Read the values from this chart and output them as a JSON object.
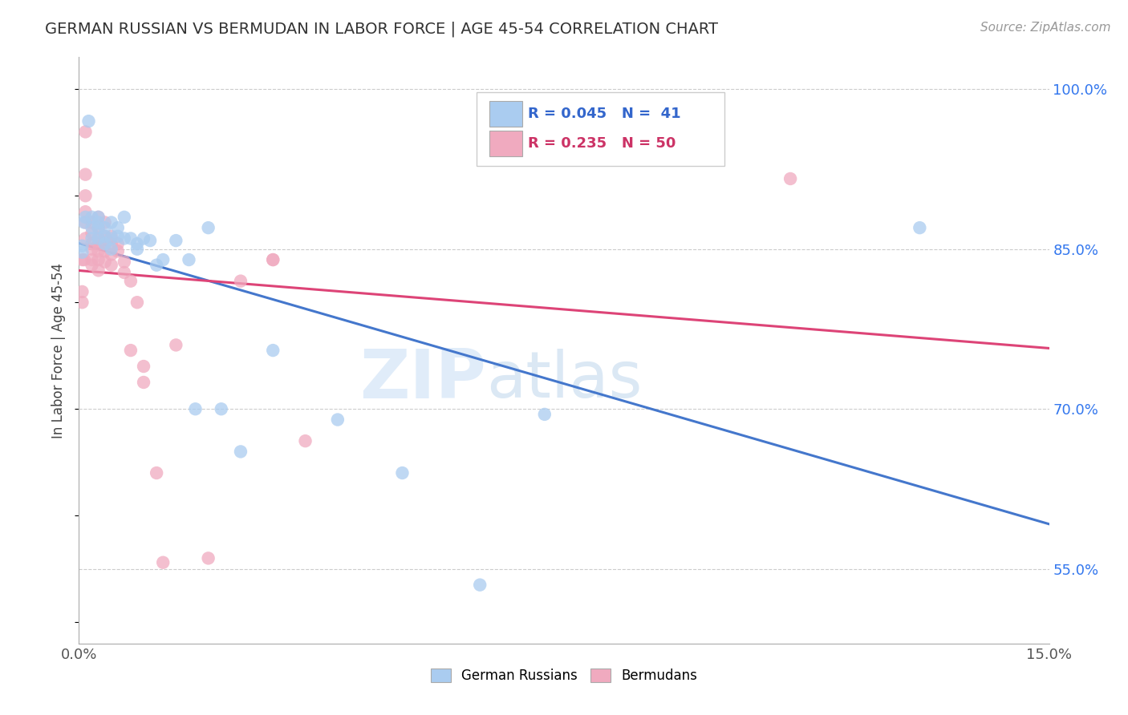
{
  "title": "GERMAN RUSSIAN VS BERMUDAN IN LABOR FORCE | AGE 45-54 CORRELATION CHART",
  "source": "Source: ZipAtlas.com",
  "ylabel": "In Labor Force | Age 45-54",
  "xlim": [
    0.0,
    0.15
  ],
  "ylim": [
    0.48,
    1.03
  ],
  "yticks_right": [
    1.0,
    0.85,
    0.7,
    0.55
  ],
  "yticklabels_right": [
    "100.0%",
    "85.0%",
    "70.0%",
    "55.0%"
  ],
  "blue_color": "#aaccf0",
  "pink_color": "#f0aabf",
  "blue_line_color": "#4477cc",
  "pink_line_color": "#dd4477",
  "watermark_zip": "ZIP",
  "watermark_atlas": "atlas",
  "german_russian_x": [
    0.0008,
    0.0015,
    0.001,
    0.002,
    0.002,
    0.002,
    0.003,
    0.003,
    0.003,
    0.003,
    0.004,
    0.004,
    0.004,
    0.005,
    0.005,
    0.005,
    0.006,
    0.006,
    0.007,
    0.007,
    0.008,
    0.009,
    0.009,
    0.01,
    0.011,
    0.012,
    0.013,
    0.015,
    0.017,
    0.018,
    0.02,
    0.022,
    0.025,
    0.03,
    0.04,
    0.05,
    0.062,
    0.072,
    0.13,
    0.0005,
    0.0005
  ],
  "german_russian_y": [
    0.875,
    0.97,
    0.88,
    0.88,
    0.87,
    0.86,
    0.88,
    0.875,
    0.87,
    0.86,
    0.87,
    0.862,
    0.855,
    0.875,
    0.86,
    0.85,
    0.87,
    0.862,
    0.88,
    0.86,
    0.86,
    0.855,
    0.85,
    0.86,
    0.858,
    0.835,
    0.84,
    0.858,
    0.84,
    0.7,
    0.87,
    0.7,
    0.66,
    0.755,
    0.69,
    0.64,
    0.535,
    0.695,
    0.87,
    0.853,
    0.847
  ],
  "bermudan_x": [
    0.0005,
    0.0008,
    0.001,
    0.001,
    0.001,
    0.001,
    0.001,
    0.001,
    0.002,
    0.002,
    0.002,
    0.002,
    0.002,
    0.002,
    0.003,
    0.003,
    0.003,
    0.003,
    0.003,
    0.003,
    0.003,
    0.004,
    0.004,
    0.004,
    0.004,
    0.004,
    0.005,
    0.005,
    0.005,
    0.005,
    0.006,
    0.006,
    0.007,
    0.007,
    0.008,
    0.008,
    0.009,
    0.01,
    0.01,
    0.012,
    0.013,
    0.015,
    0.02,
    0.025,
    0.03,
    0.03,
    0.035,
    0.11,
    0.0005,
    0.0005
  ],
  "bermudan_y": [
    0.84,
    0.84,
    0.96,
    0.92,
    0.9,
    0.885,
    0.875,
    0.86,
    0.875,
    0.865,
    0.855,
    0.85,
    0.84,
    0.835,
    0.88,
    0.87,
    0.86,
    0.855,
    0.848,
    0.84,
    0.83,
    0.875,
    0.862,
    0.855,
    0.848,
    0.838,
    0.862,
    0.855,
    0.845,
    0.835,
    0.855,
    0.848,
    0.838,
    0.828,
    0.82,
    0.755,
    0.8,
    0.74,
    0.725,
    0.64,
    0.556,
    0.76,
    0.56,
    0.82,
    0.84,
    0.84,
    0.67,
    0.916,
    0.81,
    0.8
  ]
}
